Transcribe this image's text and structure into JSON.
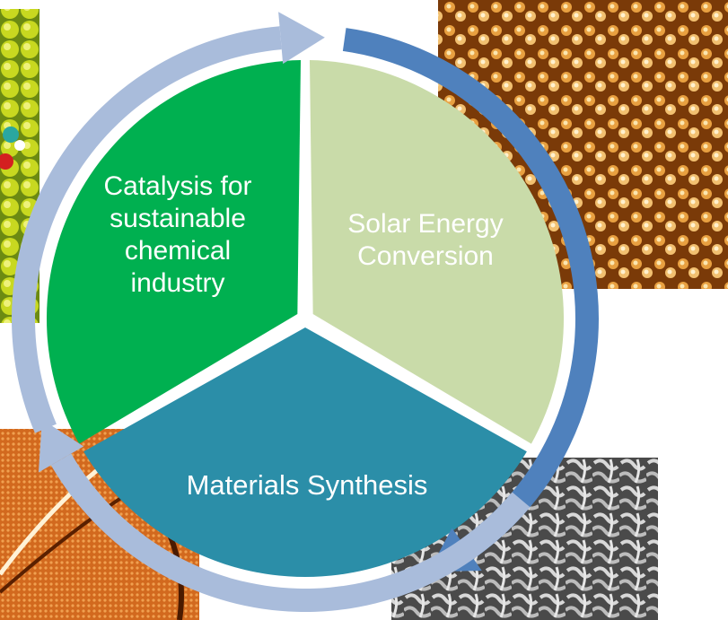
{
  "diagram": {
    "segments": [
      {
        "id": "catalysis",
        "label": "Catalysis for sustainable chemical industry",
        "color": "#00b050",
        "text_color": "#ffffff"
      },
      {
        "id": "solar",
        "label": "Solar Energy Conversion",
        "color": "#c9dba9",
        "text_color": "#ffffff"
      },
      {
        "id": "materials",
        "label": "Materials Synthesis",
        "color": "#2b8ea8",
        "text_color": "#ffffff"
      }
    ],
    "cycle_arrows": [
      {
        "from": "catalysis",
        "to": "solar",
        "color": "#a9bcdb"
      },
      {
        "from": "solar",
        "to": "materials",
        "color": "#4f81bd"
      },
      {
        "from": "materials",
        "to": "catalysis",
        "color": "#a9bcdb"
      }
    ],
    "photos": [
      {
        "name": "molecular-model-photo",
        "kind": "yellow atomic lattice with adsorbed molecule",
        "corner": "top-left"
      },
      {
        "name": "stm-surface-photo",
        "kind": "orange scanning tunneling microscopy surface",
        "corner": "top-right"
      },
      {
        "name": "afm-surface-photo",
        "kind": "orange atomic force microscopy surface with step edge",
        "corner": "bottom-left"
      },
      {
        "name": "sem-porous-photo",
        "kind": "grey scanning electron micrograph of porous material",
        "corner": "bottom-right"
      }
    ]
  }
}
